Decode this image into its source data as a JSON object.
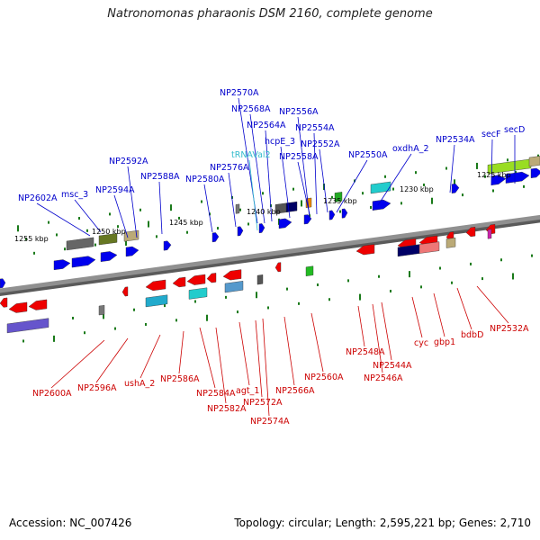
{
  "title": "Natronomonas pharaonis DSM 2160, complete genome",
  "footer": {
    "accession": "Accession: NC_007426",
    "summary": "Topology: circular; Length: 2,595,221 bp; Genes: 2,710"
  },
  "colors": {
    "forward_label": "#0000cc",
    "reverse_label": "#cc0000",
    "rna_label": "#33bbcc",
    "backbone": "#909090",
    "tick": "#1a7a1a",
    "forward_gene": "#0000ee",
    "reverse_gene": "#ee0000"
  },
  "scale_labels": [
    "1255 kbp",
    "1250 kbp",
    "1245 kbp",
    "1240 kbp",
    "1235 kbp",
    "1230 kbp",
    "1225 kbp"
  ],
  "forward_labels": [
    "NP2602A",
    "msc_3",
    "NP2594A",
    "NP2592A",
    "NP2588A",
    "NP2580A",
    "NP2576A",
    "NP2570A",
    "NP2568A",
    "NP2564A",
    "hcpE_3",
    "NP2556A",
    "NP2554A",
    "NP2558A",
    "NP2552A",
    "NP2550A",
    "oxdhA_2",
    "NP2534A",
    "secF",
    "secD"
  ],
  "rna_labels": [
    "tRNAVal2"
  ],
  "reverse_labels": [
    "NP2600A",
    "NP2596A",
    "ushA_2",
    "NP2586A",
    "NP2584A",
    "NP2582A",
    "agt_1",
    "NP2572A",
    "NP2574A",
    "NP2566A",
    "NP2560A",
    "NP2548A",
    "NP2546A",
    "NP2544A",
    "cyc",
    "gbp1",
    "bdbD",
    "NP2532A"
  ]
}
